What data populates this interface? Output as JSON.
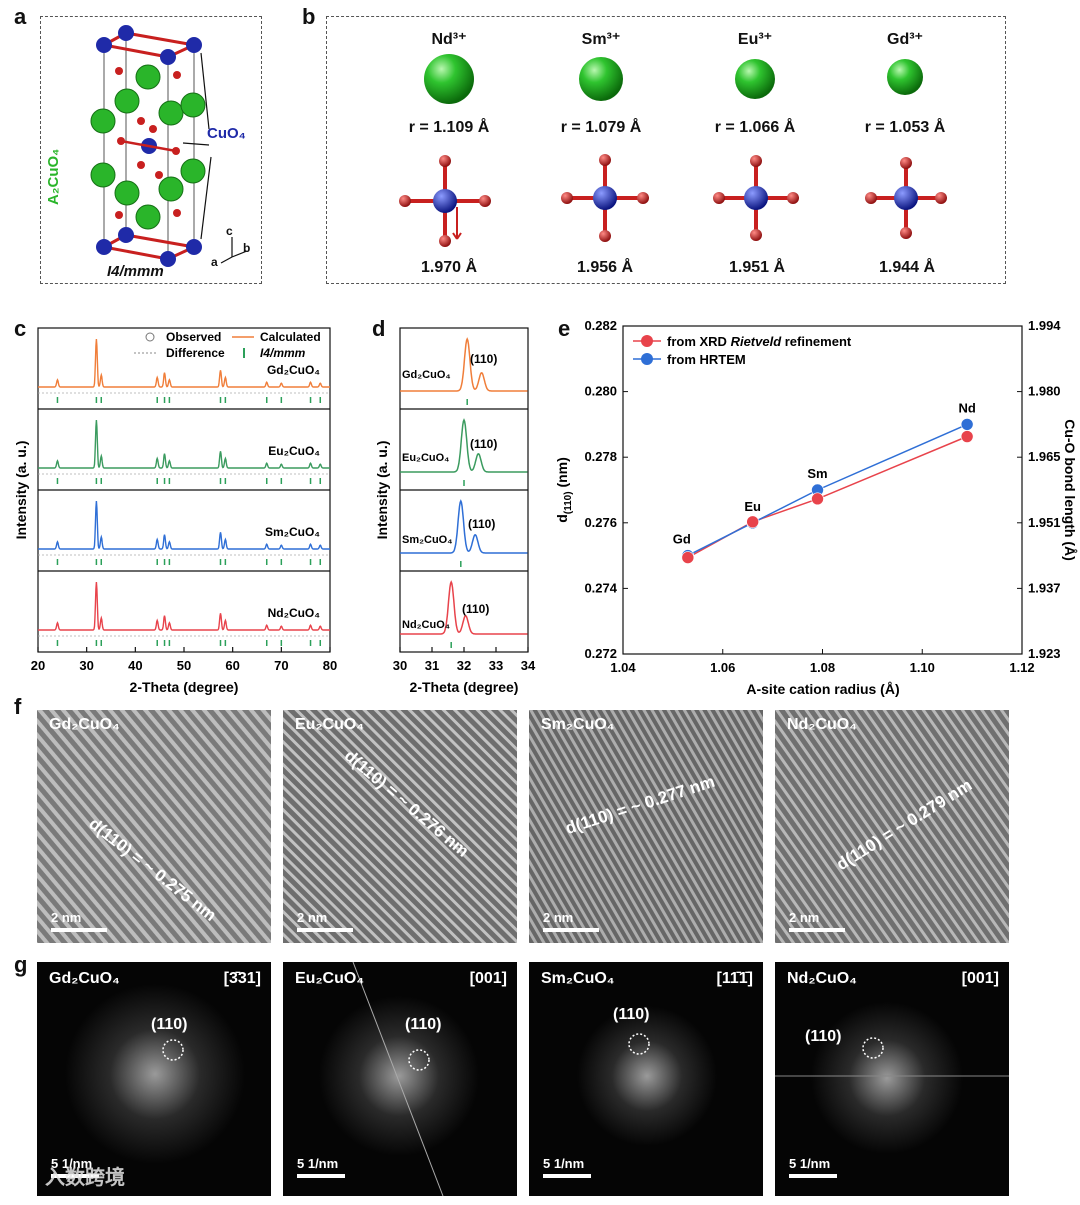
{
  "panels": {
    "a": "a",
    "b": "b",
    "c": "c",
    "d": "d",
    "e": "e",
    "f": "f",
    "g": "g"
  },
  "panel_a": {
    "formula_label": "A₂CuO₄",
    "cuo4_label": "CuO₄",
    "space_group": "I4/mmm",
    "axes": {
      "c": "c",
      "b": "b",
      "a": "a"
    }
  },
  "panel_b": {
    "ions": [
      {
        "name": "Nd³⁺",
        "radius": "r = 1.109 Å",
        "bond": "1.970 Å"
      },
      {
        "name": "Sm³⁺",
        "radius": "r = 1.079 Å",
        "bond": "1.956 Å"
      },
      {
        "name": "Eu³⁺",
        "radius": "r = 1.066 Å",
        "bond": "1.951 Å"
      },
      {
        "name": "Gd³⁺",
        "radius": "r = 1.053 Å",
        "bond": "1.944 Å"
      }
    ]
  },
  "panel_c": {
    "ylabel": "Intensity (a. u.)",
    "xlabel": "2-Theta (degree)",
    "xticks": [
      "20",
      "30",
      "40",
      "50",
      "60",
      "70",
      "80"
    ],
    "legend": {
      "observed": "Observed",
      "calculated": "Calculated",
      "difference": "Difference",
      "sg": "I4/mmm"
    },
    "samples": [
      "Gd₂CuO₄",
      "Eu₂CuO₄",
      "Sm₂CuO₄",
      "Nd₂CuO₄"
    ]
  },
  "panel_d": {
    "ylabel": "Intensity (a. u.)",
    "xlabel": "2-Theta (degree)",
    "xticks": [
      "30",
      "31",
      "32",
      "33",
      "34"
    ],
    "peak_label": "(110)",
    "samples": [
      "Gd₂CuO₄",
      "Eu₂CuO₄",
      "Sm₂CuO₄",
      "Nd₂CuO₄"
    ]
  },
  "chart_data": {
    "type": "line",
    "title": "",
    "xlabel": "A-site cation radius (Å)",
    "ylabel": "d(110) (nm)",
    "y2label": "Cu-O bond length (Å)",
    "xlim": [
      1.04,
      1.12
    ],
    "ylim": [
      0.272,
      0.282
    ],
    "xticks": [
      "1.04",
      "1.06",
      "1.08",
      "1.10",
      "1.12"
    ],
    "yticks": [
      "0.272",
      "0.274",
      "0.276",
      "0.278",
      "0.280",
      "0.282"
    ],
    "y2ticks": [
      "1.923",
      "1.937",
      "1.951",
      "1.965",
      "1.980",
      "1.994"
    ],
    "point_labels": [
      "Gd",
      "Eu",
      "Sm",
      "Nd"
    ],
    "x": [
      1.053,
      1.066,
      1.079,
      1.109
    ],
    "series": [
      {
        "name": "from XRD Rietveld refinement",
        "color": "#e8434b",
        "values": [
          0.27494,
          0.27603,
          0.27673,
          0.27863
        ]
      },
      {
        "name": "from HRTEM",
        "color": "#2f6fd6",
        "values": [
          0.275,
          0.276,
          0.277,
          0.279
        ]
      }
    ],
    "legend_prefix": "from XRD ",
    "legend_italic": "Rietveld",
    "legend_suffix": " refinement",
    "legend_2": "from HRTEM"
  },
  "panel_f": {
    "images": [
      {
        "sample": "Gd₂CuO₄",
        "d_label": "d(110) = ~ 0.275 nm",
        "scale": "2 nm"
      },
      {
        "sample": "Eu₂CuO₄",
        "d_label": "d(110) = ~ 0.276 nm",
        "scale": "2 nm"
      },
      {
        "sample": "Sm₂CuO₄",
        "d_label": "d(110) = ~ 0.277 nm",
        "scale": "2 nm"
      },
      {
        "sample": "Nd₂CuO₄",
        "d_label": "d(110) = ~ 0.279 nm",
        "scale": "2 nm"
      }
    ]
  },
  "panel_g": {
    "images": [
      {
        "sample": "Gd₂CuO₄",
        "zone": "[3̄31]",
        "spot": "(110)",
        "scale": "5 1/nm"
      },
      {
        "sample": "Eu₂CuO₄",
        "zone": "[001]",
        "spot": "(110)",
        "scale": "5 1/nm"
      },
      {
        "sample": "Sm₂CuO₄",
        "zone": "[11̄1̄]",
        "spot": "(110)",
        "scale": "5 1/nm"
      },
      {
        "sample": "Nd₂CuO₄",
        "zone": "[001]",
        "spot": "(110)",
        "scale": "5 1/nm"
      }
    ]
  },
  "watermark": "入数跨境",
  "colors": {
    "gd": "#f07e3a",
    "eu": "#3b9b5f",
    "sm": "#2f6fd6",
    "nd": "#e8434b",
    "tick": "#2ca05a",
    "cu": "#1f2aa8",
    "o": "#c8201f",
    "a": "#2ab52a"
  }
}
